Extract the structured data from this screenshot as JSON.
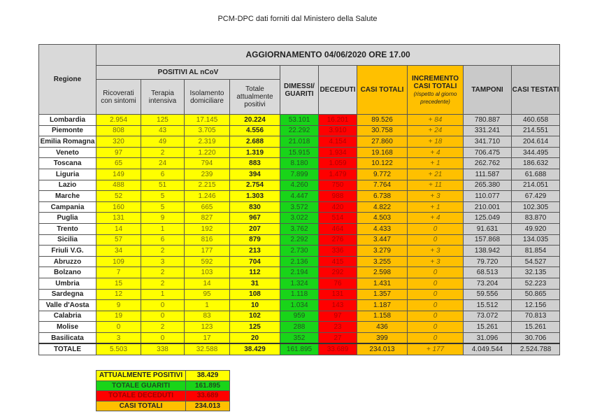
{
  "caption": "PCM-DPC dati forniti dal Ministero della Salute",
  "header": {
    "regione": "Regione",
    "title": "AGGIORNAMENTO 04/06/2020 ORE 17.00",
    "positivi": "POSITIVI AL nCoV",
    "ricoverati": "Ricoverati con sintomi",
    "terapia": "Terapia intensiva",
    "isolamento": "Isolamento domiciliare",
    "totale_pos": "Totale attualmente positivi",
    "dimessi": "DIMESSI/ GUARITI",
    "deceduti": "DECEDUTI",
    "casi_totali": "CASI TOTALI",
    "incremento": "INCREMENTO CASI TOTALI",
    "incremento_note": "(rispetto al giorno precedente)",
    "tamponi": "TAMPONI",
    "casi_testati": "CASI TESTATI"
  },
  "rows": [
    [
      "Lombardia",
      "2.954",
      "125",
      "17.145",
      "20.224",
      "53.101",
      "16.201",
      "89.526",
      "+ 84",
      "780.887",
      "460.658"
    ],
    [
      "Piemonte",
      "808",
      "43",
      "3.705",
      "4.556",
      "22.292",
      "3.910",
      "30.758",
      "+ 24",
      "331.241",
      "214.551"
    ],
    [
      "Emilia Romagna",
      "320",
      "49",
      "2.319",
      "2.688",
      "21.018",
      "4.154",
      "27.860",
      "+ 18",
      "341.710",
      "204.614"
    ],
    [
      "Veneto",
      "97",
      "2",
      "1.220",
      "1.319",
      "15.915",
      "1.934",
      "19.168",
      "+ 4",
      "706.475",
      "344.495"
    ],
    [
      "Toscana",
      "65",
      "24",
      "794",
      "883",
      "8.180",
      "1.059",
      "10.122",
      "+ 1",
      "262.762",
      "186.632"
    ],
    [
      "Liguria",
      "149",
      "6",
      "239",
      "394",
      "7.899",
      "1.479",
      "9.772",
      "+ 21",
      "111.587",
      "61.688"
    ],
    [
      "Lazio",
      "488",
      "51",
      "2.215",
      "2.754",
      "4.260",
      "750",
      "7.764",
      "+ 11",
      "265.380",
      "214.051"
    ],
    [
      "Marche",
      "52",
      "5",
      "1.246",
      "1.303",
      "4.447",
      "988",
      "6.738",
      "+ 3",
      "110.077",
      "67.429"
    ],
    [
      "Campania",
      "160",
      "5",
      "665",
      "830",
      "3.572",
      "420",
      "4.822",
      "+ 1",
      "210.001",
      "102.305"
    ],
    [
      "Puglia",
      "131",
      "9",
      "827",
      "967",
      "3.022",
      "514",
      "4.503",
      "+ 4",
      "125.049",
      "83.870"
    ],
    [
      "Trento",
      "14",
      "1",
      "192",
      "207",
      "3.762",
      "464",
      "4.433",
      "0",
      "91.631",
      "49.920"
    ],
    [
      "Sicilia",
      "57",
      "6",
      "816",
      "879",
      "2.292",
      "276",
      "3.447",
      "0",
      "157.868",
      "134.035"
    ],
    [
      "Friuli V.G.",
      "34",
      "2",
      "177",
      "213",
      "2.730",
      "336",
      "3.279",
      "+ 3",
      "138.942",
      "81.854"
    ],
    [
      "Abruzzo",
      "109",
      "3",
      "592",
      "704",
      "2.136",
      "415",
      "3.255",
      "+ 3",
      "79.720",
      "54.527"
    ],
    [
      "Bolzano",
      "7",
      "2",
      "103",
      "112",
      "2.194",
      "292",
      "2.598",
      "0",
      "68.513",
      "32.135"
    ],
    [
      "Umbria",
      "15",
      "2",
      "14",
      "31",
      "1.324",
      "76",
      "1.431",
      "0",
      "73.204",
      "52.223"
    ],
    [
      "Sardegna",
      "12",
      "1",
      "95",
      "108",
      "1.118",
      "131",
      "1.357",
      "0",
      "59.556",
      "50.865"
    ],
    [
      "Valle d'Aosta",
      "9",
      "0",
      "1",
      "10",
      "1.034",
      "143",
      "1.187",
      "0",
      "15.512",
      "12.156"
    ],
    [
      "Calabria",
      "19",
      "0",
      "83",
      "102",
      "959",
      "97",
      "1.158",
      "0",
      "73.072",
      "70.813"
    ],
    [
      "Molise",
      "0",
      "2",
      "123",
      "125",
      "288",
      "23",
      "436",
      "0",
      "15.261",
      "15.261"
    ],
    [
      "Basilicata",
      "3",
      "0",
      "17",
      "20",
      "352",
      "27",
      "399",
      "0",
      "31.096",
      "30.706"
    ]
  ],
  "totale": [
    "TOTALE",
    "5.503",
    "338",
    "32.588",
    "38.429",
    "161.895",
    "33.689",
    "234.013",
    "+ 177",
    "4.049.544",
    "2.524.788"
  ],
  "summary": [
    {
      "label": "ATTUALMENTE POSITIVI",
      "value": "38.429",
      "color": "#ffff00",
      "text": "#222222"
    },
    {
      "label": "TOTALE GUARITI",
      "value": "161.895",
      "color": "#19d419",
      "text": "#1f4f1f"
    },
    {
      "label": "TOTALE DECEDUTI",
      "value": "33.689",
      "color": "#ff0000",
      "text": "#a00000"
    },
    {
      "label": "CASI TOTALI",
      "value": "234.013",
      "color": "#ffc000",
      "text": "#222222"
    }
  ]
}
